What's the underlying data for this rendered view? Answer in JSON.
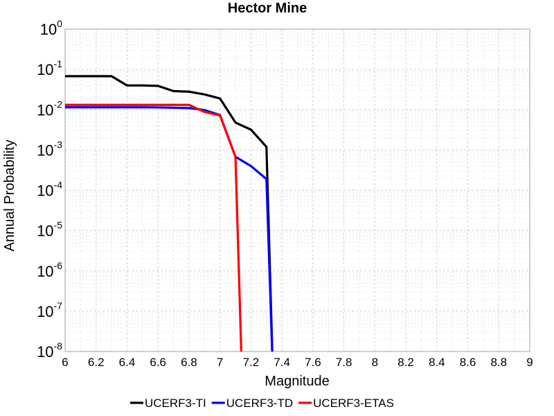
{
  "chart_data": {
    "type": "line",
    "title": "Hector Mine",
    "xlabel": "Magnitude",
    "ylabel": "Annual Probability",
    "xlim": [
      6,
      9
    ],
    "ylim": [
      1e-08,
      1
    ],
    "yscale": "log",
    "grid": true,
    "legend_position": "bottom",
    "xticks": [
      "6",
      "6.2",
      "6.4",
      "6.6",
      "6.8",
      "7",
      "7.2",
      "7.4",
      "7.6",
      "7.8",
      "8",
      "8.2",
      "8.4",
      "8.6",
      "8.8",
      "9"
    ],
    "yticks": [
      {
        "base": "10",
        "exp": "0"
      },
      {
        "base": "10",
        "exp": "-1"
      },
      {
        "base": "10",
        "exp": "-2"
      },
      {
        "base": "10",
        "exp": "-3"
      },
      {
        "base": "10",
        "exp": "-4"
      },
      {
        "base": "10",
        "exp": "-5"
      },
      {
        "base": "10",
        "exp": "-6"
      },
      {
        "base": "10",
        "exp": "-7"
      },
      {
        "base": "10",
        "exp": "-8"
      }
    ],
    "series": [
      {
        "name": "UCERF3-TI",
        "color": "#000000",
        "points": [
          [
            6.0,
            0.068
          ],
          [
            6.1,
            0.068
          ],
          [
            6.2,
            0.068
          ],
          [
            6.3,
            0.068
          ],
          [
            6.4,
            0.04
          ],
          [
            6.5,
            0.04
          ],
          [
            6.6,
            0.039
          ],
          [
            6.7,
            0.029
          ],
          [
            6.8,
            0.028
          ],
          [
            6.9,
            0.024
          ],
          [
            7.0,
            0.019
          ],
          [
            7.1,
            0.0048
          ],
          [
            7.2,
            0.0032
          ],
          [
            7.3,
            0.0012
          ],
          [
            7.34,
            0.0
          ]
        ]
      },
      {
        "name": "UCERF3-TD",
        "color": "#0000ff",
        "points": [
          [
            6.0,
            0.0115
          ],
          [
            6.1,
            0.0115
          ],
          [
            6.2,
            0.0115
          ],
          [
            6.3,
            0.0115
          ],
          [
            6.4,
            0.0115
          ],
          [
            6.5,
            0.0115
          ],
          [
            6.6,
            0.0114
          ],
          [
            6.7,
            0.0112
          ],
          [
            6.8,
            0.011
          ],
          [
            6.9,
            0.0098
          ],
          [
            7.0,
            0.0074
          ],
          [
            7.1,
            0.00068
          ],
          [
            7.2,
            0.0004
          ],
          [
            7.3,
            0.00019
          ],
          [
            7.34,
            0.0
          ]
        ]
      },
      {
        "name": "UCERF3-ETAS",
        "color": "#ff0000",
        "points": [
          [
            6.0,
            0.0132
          ],
          [
            6.1,
            0.0132
          ],
          [
            6.2,
            0.0132
          ],
          [
            6.3,
            0.0132
          ],
          [
            6.4,
            0.0132
          ],
          [
            6.5,
            0.0132
          ],
          [
            6.6,
            0.0132
          ],
          [
            6.7,
            0.0132
          ],
          [
            6.8,
            0.0132
          ],
          [
            6.9,
            0.0088
          ],
          [
            7.0,
            0.0072
          ],
          [
            7.1,
            0.00068
          ],
          [
            7.14,
            0.0
          ]
        ]
      }
    ]
  }
}
